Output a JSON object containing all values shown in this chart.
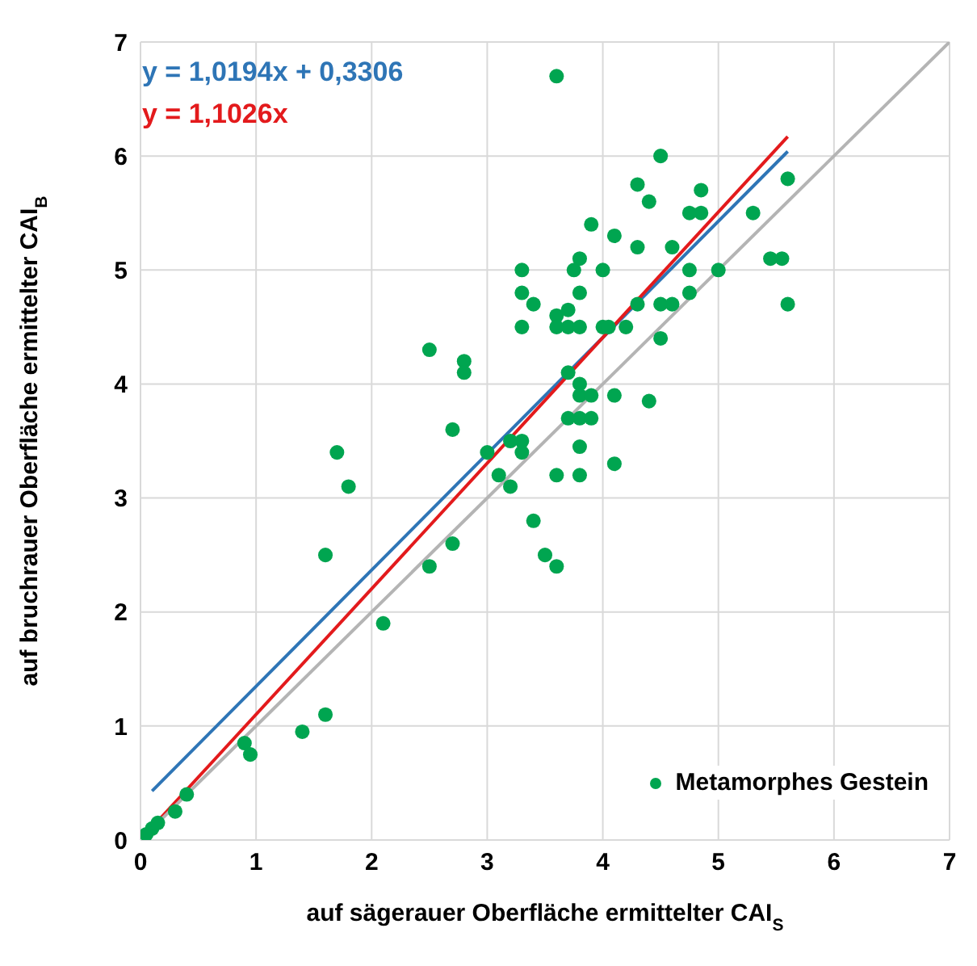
{
  "chart_data": {
    "type": "scatter",
    "xlabel": "auf sägerauer Oberfläche ermittelter CAI$_{S}$",
    "ylabel": "auf bruchrauer Oberfläche ermittelter CAI$_{B}$",
    "xlim": [
      0,
      7
    ],
    "ylim": [
      0,
      7
    ],
    "xticks": [
      0,
      1,
      2,
      3,
      4,
      5,
      6,
      7
    ],
    "yticks": [
      0,
      1,
      2,
      3,
      4,
      5,
      6,
      7
    ],
    "grid": true,
    "legend": "bottom right",
    "marker": "circle",
    "series": [
      {
        "name": "Metamorphes Gestein",
        "color": "#00a550",
        "x": [
          3.6,
          4.5,
          4.3,
          4.85,
          4.4,
          5.6,
          4.75,
          4.85,
          5.3,
          3.9,
          4.1,
          3.8,
          4.6,
          5.45,
          5.55,
          4.3,
          3.3,
          3.75,
          4.0,
          4.75,
          5.0,
          3.3,
          3.8,
          4.75,
          5.6,
          3.6,
          3.7,
          3.4,
          3.3,
          3.6,
          3.7,
          3.8,
          4.0,
          4.05,
          4.2,
          4.3,
          4.5,
          4.6,
          4.5,
          2.5,
          2.8,
          2.8,
          3.7,
          3.8,
          3.8,
          3.9,
          4.1,
          4.4,
          3.3,
          3.3,
          3.2,
          3.8,
          3.7,
          3.9,
          3.8,
          4.1,
          3.6,
          3.8,
          2.7,
          1.7,
          1.8,
          3.0,
          3.1,
          3.2,
          3.4,
          3.5,
          3.6,
          2.5,
          2.7,
          1.6,
          2.1,
          1.6,
          1.4,
          0.9,
          0.95,
          0.4,
          0.3,
          0.1,
          0.15,
          0.05
        ],
        "values": [
          6.7,
          6.0,
          5.75,
          5.7,
          5.6,
          5.8,
          5.5,
          5.5,
          5.5,
          5.4,
          5.3,
          5.1,
          5.2,
          5.1,
          5.1,
          5.2,
          5.0,
          5.0,
          5.0,
          5.0,
          5.0,
          4.8,
          4.8,
          4.8,
          4.7,
          4.6,
          4.65,
          4.7,
          4.5,
          4.5,
          4.5,
          4.5,
          4.5,
          4.5,
          4.5,
          4.7,
          4.7,
          4.7,
          4.4,
          4.3,
          4.2,
          4.1,
          4.1,
          4.0,
          3.9,
          3.9,
          3.9,
          3.85,
          3.5,
          3.4,
          3.5,
          3.7,
          3.7,
          3.7,
          3.45,
          3.3,
          3.2,
          3.2,
          3.6,
          3.4,
          3.1,
          3.4,
          3.2,
          3.1,
          2.8,
          2.5,
          2.4,
          2.4,
          2.6,
          2.5,
          1.9,
          1.1,
          0.95,
          0.85,
          0.75,
          0.4,
          0.25,
          0.1,
          0.15,
          0.05
        ]
      },
      {
        "type": "line",
        "marker": "none",
        "name": "y = 1,0194x + 0,3306",
        "color": "#2e75b6",
        "x": [
          0.1,
          5.6
        ],
        "values": [
          0.43,
          6.04
        ]
      },
      {
        "type": "line",
        "marker": "none",
        "name": "y = 1,1026x",
        "color": "#e31a1c",
        "x": [
          0,
          5.6
        ],
        "values": [
          0,
          6.17
        ]
      },
      {
        "type": "line",
        "marker": "none",
        "color": "#b4b4b4",
        "x": [
          0,
          7
        ],
        "values": [
          0,
          7
        ]
      }
    ]
  }
}
